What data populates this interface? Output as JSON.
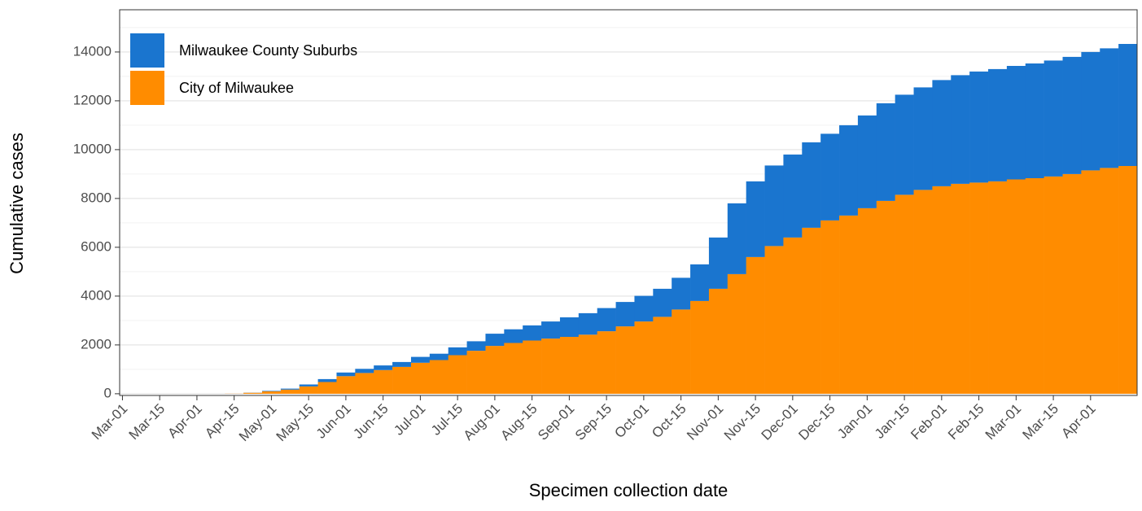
{
  "chart_data": {
    "type": "stacked_bar",
    "x_label": "Specimen collection date",
    "y_label": "Cumulative cases",
    "categories": [
      "Mar-01",
      null,
      "Mar-15",
      null,
      "Apr-01",
      null,
      "Apr-15",
      null,
      "May-01",
      null,
      "May-15",
      null,
      "Jun-01",
      null,
      "Jun-15",
      null,
      "Jul-01",
      null,
      "Jul-15",
      null,
      "Aug-01",
      null,
      "Aug-15",
      null,
      "Sep-01",
      null,
      "Sep-15",
      null,
      "Oct-01",
      null,
      "Oct-15",
      null,
      "Nov-01",
      null,
      "Nov-15",
      null,
      "Dec-01",
      null,
      "Dec-15",
      null,
      "Jan-01",
      null,
      "Jan-15",
      null,
      "Feb-01",
      null,
      "Feb-15",
      null,
      "Mar-01",
      null,
      "Mar-15",
      null,
      "Apr-01",
      null,
      null
    ],
    "series": [
      {
        "name": "City of Milwaukee",
        "color": "#ff8c00",
        "values": [
          0,
          0,
          0,
          0,
          0,
          0,
          5,
          40,
          100,
          170,
          300,
          480,
          720,
          850,
          970,
          1100,
          1270,
          1380,
          1580,
          1760,
          1960,
          2080,
          2180,
          2260,
          2330,
          2420,
          2560,
          2760,
          2960,
          3150,
          3450,
          3800,
          4300,
          4900,
          5600,
          6050,
          6400,
          6800,
          7100,
          7300,
          7600,
          7900,
          8150,
          8350,
          8500,
          8600,
          8650,
          8700,
          8780,
          8830,
          8900,
          9000,
          9150,
          9250,
          9330
        ]
      },
      {
        "name": "Milwaukee County Suburbs",
        "color": "#1a75cf",
        "values": [
          0,
          0,
          0,
          0,
          0,
          0,
          0,
          5,
          20,
          40,
          80,
          120,
          150,
          170,
          190,
          200,
          240,
          260,
          320,
          390,
          500,
          560,
          620,
          700,
          800,
          880,
          950,
          1000,
          1050,
          1150,
          1300,
          1500,
          2100,
          2900,
          3100,
          3300,
          3400,
          3500,
          3550,
          3700,
          3800,
          4000,
          4100,
          4200,
          4350,
          4450,
          4550,
          4600,
          4650,
          4700,
          4750,
          4800,
          4850,
          4900,
          5000
        ]
      }
    ],
    "ylim": [
      -70,
      15730
    ],
    "yticks": [
      0,
      2000,
      4000,
      6000,
      8000,
      10000,
      12000,
      14000
    ],
    "minor_yticks": [
      1000,
      3000,
      5000,
      7000,
      9000,
      11000,
      13000,
      15000
    ],
    "grid": true,
    "legend": "top-left"
  }
}
